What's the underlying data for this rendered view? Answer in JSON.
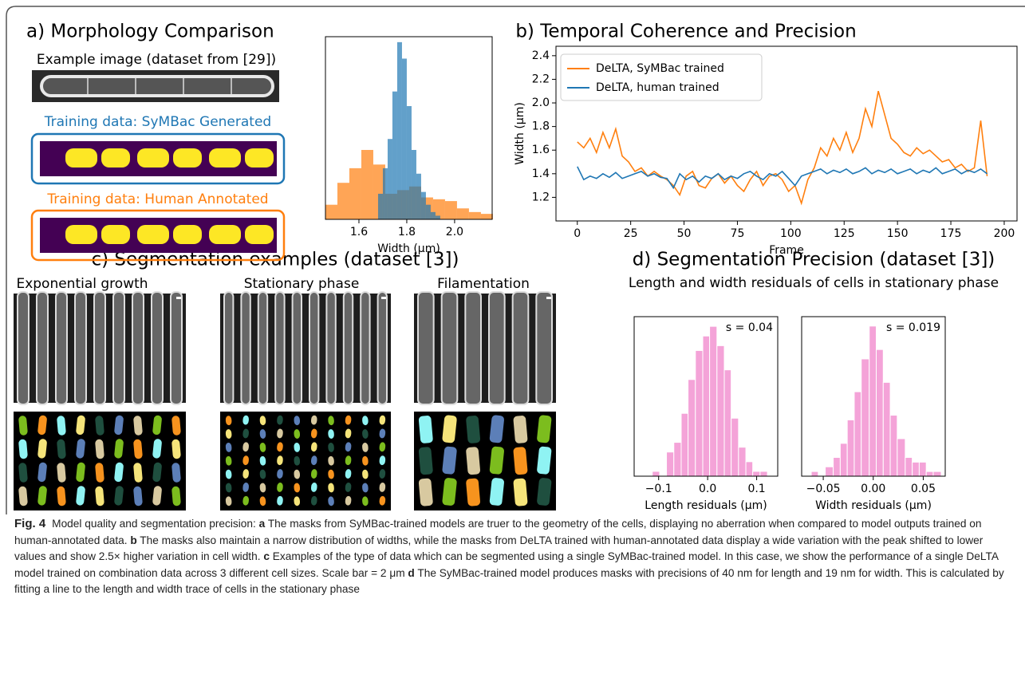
{
  "panel_a": {
    "title": "a) Morphology Comparison",
    "example_label": "Example image (dataset from [29])",
    "symbac_label": "Training data: SyMBac Generated",
    "human_label": "Training data: Human Annotated"
  },
  "panel_b": {
    "title": "b) Temporal Coherence and Precision"
  },
  "panel_c": {
    "title": "c) Segmentation examples (dataset [3])",
    "columns": [
      "Exponential growth",
      "Stationary phase",
      "Filamentation"
    ]
  },
  "panel_d": {
    "title": "d) Segmentation Precision (dataset [3])",
    "subtitle": "Length and width residuals of cells in stationary phase"
  },
  "chart_data": [
    {
      "type": "histogram",
      "xlabel": "Width (μm)",
      "xlim": [
        1.46,
        2.157
      ],
      "ylim": [
        0,
        100
      ],
      "alpha": 0.7,
      "xticks": [
        1.6,
        1.8,
        {
          "value": 2,
          "label": "2.0"
        }
      ],
      "series": [
        {
          "color": "#ff7f0e",
          "bins": [
            1.46,
            1.51,
            1.56,
            1.61,
            1.66,
            1.71,
            1.76,
            1.81,
            1.86,
            1.91,
            1.96,
            2.01,
            2.06,
            2.11,
            2.16
          ],
          "values": [
            8,
            20,
            28,
            38,
            30,
            14,
            16,
            18,
            12,
            11,
            10,
            6,
            4,
            3
          ]
        },
        {
          "color": "#1f77b4",
          "bins": [
            1.68,
            1.7,
            1.72,
            1.74,
            1.76,
            1.78,
            1.8,
            1.82,
            1.84,
            1.86,
            1.88,
            1.9,
            1.92,
            1.94
          ],
          "values": [
            14,
            28,
            44,
            70,
            97,
            88,
            62,
            38,
            25,
            15,
            8,
            4,
            2
          ]
        }
      ]
    },
    {
      "type": "line",
      "xlabel": "Frame",
      "ylabel": "Width (μm)",
      "xlim": [
        -10,
        206
      ],
      "ylim": [
        1.0,
        2.48
      ],
      "legend": "upper left",
      "xticks": [
        0,
        25,
        50,
        75,
        100,
        125,
        150,
        175,
        200
      ],
      "yticks": [
        1.2,
        1.4,
        1.6,
        1.8,
        {
          "value": 2,
          "label": "2.0"
        },
        2.2,
        2.4
      ],
      "x": [
        0,
        3,
        6,
        9,
        12,
        15,
        18,
        21,
        24,
        27,
        30,
        33,
        36,
        39,
        42,
        45,
        48,
        51,
        54,
        57,
        60,
        63,
        66,
        69,
        72,
        75,
        78,
        81,
        84,
        87,
        90,
        93,
        96,
        99,
        102,
        105,
        108,
        111,
        114,
        117,
        120,
        123,
        126,
        129,
        132,
        135,
        138,
        141,
        144,
        147,
        150,
        153,
        156,
        159,
        162,
        165,
        168,
        171,
        174,
        177,
        180,
        183,
        186,
        189,
        192
      ],
      "series": [
        {
          "name": "DeLTA, SyMBac trained",
          "color": "#ff7f0e",
          "values": [
            1.67,
            1.62,
            1.7,
            1.58,
            1.75,
            1.62,
            1.78,
            1.55,
            1.5,
            1.42,
            1.45,
            1.38,
            1.42,
            1.38,
            1.35,
            1.3,
            1.22,
            1.38,
            1.42,
            1.3,
            1.28,
            1.36,
            1.4,
            1.32,
            1.38,
            1.3,
            1.25,
            1.35,
            1.42,
            1.3,
            1.38,
            1.4,
            1.35,
            1.25,
            1.3,
            1.15,
            1.35,
            1.45,
            1.62,
            1.55,
            1.7,
            1.6,
            1.75,
            1.58,
            1.7,
            1.95,
            1.8,
            2.1,
            1.9,
            1.7,
            1.65,
            1.58,
            1.55,
            1.62,
            1.57,
            1.6,
            1.55,
            1.5,
            1.52,
            1.45,
            1.48,
            1.42,
            1.45,
            1.85,
            1.38
          ]
        },
        {
          "name": "DeLTA, human trained",
          "color": "#1f77b4",
          "values": [
            1.46,
            1.35,
            1.38,
            1.36,
            1.4,
            1.37,
            1.41,
            1.36,
            1.38,
            1.4,
            1.42,
            1.38,
            1.4,
            1.37,
            1.36,
            1.28,
            1.4,
            1.35,
            1.38,
            1.33,
            1.38,
            1.36,
            1.4,
            1.35,
            1.38,
            1.36,
            1.4,
            1.42,
            1.38,
            1.35,
            1.4,
            1.38,
            1.42,
            1.36,
            1.3,
            1.38,
            1.4,
            1.42,
            1.44,
            1.4,
            1.43,
            1.41,
            1.44,
            1.4,
            1.42,
            1.45,
            1.4,
            1.43,
            1.41,
            1.44,
            1.4,
            1.42,
            1.44,
            1.4,
            1.43,
            1.41,
            1.45,
            1.4,
            1.42,
            1.44,
            1.4,
            1.43,
            1.41,
            1.44,
            1.4
          ]
        }
      ]
    },
    {
      "type": "histogram",
      "xlabel": "Length residuals (μm)",
      "annotation": "s = 0.04",
      "xlim": [
        -0.15,
        0.143
      ],
      "ylim": [
        0,
        33
      ],
      "alpha": 1,
      "xticks": [
        {
          "value": -0.1,
          "label": "−0.1"
        },
        {
          "value": 0,
          "label": "0.0"
        },
        0.1
      ],
      "series": [
        {
          "color": "#f4a3d8",
          "bins": [
            -0.113,
            -0.098,
            -0.084,
            -0.069,
            -0.054,
            -0.04,
            -0.025,
            -0.01,
            0.004,
            0.019,
            0.034,
            0.048,
            0.063,
            0.078,
            0.092,
            0.107,
            0.122
          ],
          "values": [
            1,
            0,
            5,
            7,
            13,
            20,
            26,
            29,
            31,
            27,
            22,
            12,
            6,
            3,
            1,
            1
          ]
        }
      ]
    },
    {
      "type": "histogram",
      "xlabel": "Width residuals (μm)",
      "annotation": "s = 0.019",
      "xlim": [
        -0.0716,
        0.072
      ],
      "ylim": [
        0,
        34
      ],
      "alpha": 1,
      "xticks": [
        {
          "value": -0.05,
          "label": "−0.05"
        },
        {
          "value": 0,
          "label": "0.00"
        },
        0.05
      ],
      "series": [
        {
          "color": "#f4a3d8",
          "bins": [
            -0.062,
            -0.055,
            -0.048,
            -0.04,
            -0.033,
            -0.026,
            -0.019,
            -0.012,
            -0.004,
            0.003,
            0.01,
            0.017,
            0.024,
            0.032,
            0.039,
            0.046,
            0.053,
            0.06,
            0.068
          ],
          "values": [
            1,
            0,
            2,
            4,
            7,
            12,
            18,
            25,
            32,
            27,
            20,
            13,
            8,
            4,
            3,
            3,
            1,
            1
          ]
        }
      ]
    }
  ],
  "caption": {
    "figure": "Fig. 4",
    "segments": [
      {
        "text": "Model quality and segmentation precision: ",
        "bold": false
      },
      {
        "text": "a",
        "bold": true
      },
      {
        "text": " The masks from SyMBac-trained models are truer to the geometry of the cells, displaying no aberration when compared to model outputs trained on human-annotated data. ",
        "bold": false
      },
      {
        "text": "b",
        "bold": true
      },
      {
        "text": " The masks also maintain a narrow distribution of widths, while the masks from DeLTA trained with human-annotated data display a wide variation with the peak shifted to lower values and show 2.5× higher variation in cell width. ",
        "bold": false
      },
      {
        "text": "c",
        "bold": true
      },
      {
        "text": " Examples of the type of data which can be segmented using a single SyMBac-trained model. In this case, we show the performance of a single DeLTA model trained on combination data across 3 different cell sizes. Scale bar = 2 μm ",
        "bold": false
      },
      {
        "text": "d",
        "bold": true
      },
      {
        "text": " The SyMBac-trained model produces masks with precisions of 40 nm for length and 19 nm for width. This is calculated by fitting a line to the length and width trace of cells in the stationary phase",
        "bold": false
      }
    ]
  }
}
